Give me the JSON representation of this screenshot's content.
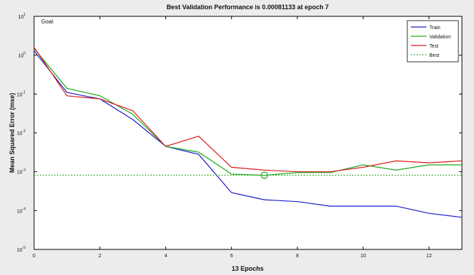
{
  "chart_data": {
    "type": "line",
    "title": "Best Validation Performance is 0.00081133 at epoch 7",
    "xlabel": "13 Epochs",
    "ylabel": "Mean Squared Error  (mse)",
    "xlim": [
      0,
      13
    ],
    "ylim": [
      1e-05,
      10
    ],
    "y_scale": "log",
    "x_ticks": [
      0,
      2,
      4,
      6,
      8,
      10,
      12
    ],
    "y_ticks": [
      {
        "value": 10,
        "base": "10",
        "exp": "1"
      },
      {
        "value": 1,
        "base": "10",
        "exp": "0"
      },
      {
        "value": 0.1,
        "base": "10",
        "exp": "-1"
      },
      {
        "value": 0.01,
        "base": "10",
        "exp": "-2"
      },
      {
        "value": 0.001,
        "base": "10",
        "exp": "-3"
      },
      {
        "value": 0.0001,
        "base": "10",
        "exp": "-4"
      },
      {
        "value": 1e-05,
        "base": "10",
        "exp": "-5"
      }
    ],
    "x": [
      0,
      1,
      2,
      3,
      4,
      5,
      6,
      7,
      8,
      9,
      10,
      11,
      12,
      13
    ],
    "series": [
      {
        "name": "Train",
        "color": "#1a1acc",
        "values": [
          1.3,
          0.11,
          0.075,
          0.022,
          0.0045,
          0.0028,
          0.00029,
          0.00019,
          0.00017,
          0.00013,
          0.00013,
          0.00013,
          8.5e-05,
          6.7e-05
        ]
      },
      {
        "name": "Validation",
        "color": "#1aaa1a",
        "values": [
          1.5,
          0.14,
          0.09,
          0.03,
          0.0045,
          0.0032,
          0.00087,
          0.00081,
          0.00095,
          0.00095,
          0.0015,
          0.0011,
          0.0015,
          0.0015
        ]
      },
      {
        "name": "Test",
        "color": "#dd1a1a",
        "values": [
          1.6,
          0.09,
          0.075,
          0.037,
          0.0045,
          0.0082,
          0.0013,
          0.0011,
          0.001,
          0.001,
          0.0013,
          0.0019,
          0.0017,
          0.0019
        ]
      }
    ],
    "best": {
      "name": "Best",
      "x": 7,
      "y": 0.00081133,
      "color": "#1aaa1a"
    },
    "goal_label": "Goal",
    "legend_position": "top-right",
    "grid": false
  }
}
